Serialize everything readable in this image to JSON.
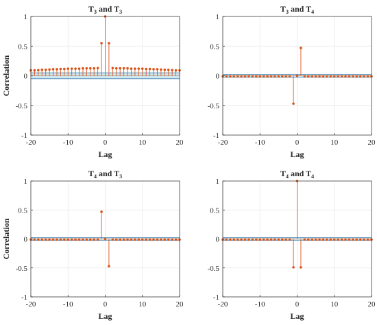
{
  "chart_data": [
    {
      "type": "stem",
      "title": {
        "parts": [
          {
            "t": "T"
          },
          {
            "sub": "3"
          },
          {
            "t": " and T"
          },
          {
            "sub": "3"
          }
        ]
      },
      "xlabel": "Lag",
      "ylabel": "Correlation",
      "xlim": [
        -20,
        20
      ],
      "ylim": [
        -1,
        1
      ],
      "xticks": [
        "-20",
        "-10",
        "0",
        "10",
        "20"
      ],
      "yticks": [
        "1",
        "0.5",
        "0",
        "-0.5",
        "-1"
      ],
      "grid": true,
      "x": [
        -20,
        -19,
        -18,
        -17,
        -16,
        -15,
        -14,
        -13,
        -12,
        -11,
        -10,
        -9,
        -8,
        -7,
        -6,
        -5,
        -4,
        -3,
        -2,
        -1,
        0,
        1,
        2,
        3,
        4,
        5,
        6,
        7,
        8,
        9,
        10,
        11,
        12,
        13,
        14,
        15,
        16,
        17,
        18,
        19,
        20
      ],
      "values": [
        0.09,
        0.09,
        0.095,
        0.1,
        0.1,
        0.105,
        0.11,
        0.11,
        0.115,
        0.115,
        0.12,
        0.12,
        0.12,
        0.12,
        0.125,
        0.125,
        0.125,
        0.125,
        0.13,
        0.55,
        1.0,
        0.55,
        0.13,
        0.125,
        0.125,
        0.125,
        0.125,
        0.12,
        0.12,
        0.12,
        0.12,
        0.115,
        0.115,
        0.11,
        0.11,
        0.105,
        0.1,
        0.1,
        0.095,
        0.09,
        0.09
      ],
      "bounds": [
        0.05,
        -0.05
      ]
    },
    {
      "type": "stem",
      "title": {
        "parts": [
          {
            "t": "T"
          },
          {
            "sub": "3"
          },
          {
            "t": " and T"
          },
          {
            "sub": "4"
          }
        ]
      },
      "xlabel": "Lag",
      "ylabel": "",
      "xlim": [
        -20,
        20
      ],
      "ylim": [
        -1,
        1
      ],
      "xticks": [
        "-20",
        "-10",
        "0",
        "10",
        "20"
      ],
      "yticks": [
        "1",
        "0.5",
        "0",
        "-0.5",
        "-1"
      ],
      "grid": true,
      "x": [
        -20,
        -19,
        -18,
        -17,
        -16,
        -15,
        -14,
        -13,
        -12,
        -11,
        -10,
        -9,
        -8,
        -7,
        -6,
        -5,
        -4,
        -3,
        -2,
        -1,
        0,
        1,
        2,
        3,
        4,
        5,
        6,
        7,
        8,
        9,
        10,
        11,
        12,
        13,
        14,
        15,
        16,
        17,
        18,
        19,
        20
      ],
      "values": [
        -0.01,
        -0.01,
        -0.01,
        -0.01,
        -0.01,
        -0.01,
        -0.01,
        -0.01,
        -0.01,
        -0.01,
        -0.01,
        -0.01,
        -0.01,
        -0.01,
        -0.01,
        -0.01,
        -0.01,
        -0.01,
        -0.01,
        -0.47,
        0.0,
        0.47,
        -0.01,
        -0.01,
        -0.01,
        -0.01,
        -0.01,
        -0.01,
        -0.01,
        -0.01,
        -0.01,
        -0.01,
        -0.01,
        -0.01,
        -0.01,
        -0.01,
        -0.01,
        -0.01,
        -0.01,
        -0.01,
        -0.01
      ],
      "bounds": [
        0.025,
        -0.025
      ]
    },
    {
      "type": "stem",
      "title": {
        "parts": [
          {
            "t": "T"
          },
          {
            "sub": "4"
          },
          {
            "t": " and T"
          },
          {
            "sub": "3"
          }
        ]
      },
      "xlabel": "Lag",
      "ylabel": "Correlation",
      "xlim": [
        -20,
        20
      ],
      "ylim": [
        -1,
        1
      ],
      "xticks": [
        "-20",
        "-10",
        "0",
        "10",
        "20"
      ],
      "yticks": [
        "1",
        "0.5",
        "0",
        "-0.5",
        "-1"
      ],
      "grid": true,
      "x": [
        -20,
        -19,
        -18,
        -17,
        -16,
        -15,
        -14,
        -13,
        -12,
        -11,
        -10,
        -9,
        -8,
        -7,
        -6,
        -5,
        -4,
        -3,
        -2,
        -1,
        0,
        1,
        2,
        3,
        4,
        5,
        6,
        7,
        8,
        9,
        10,
        11,
        12,
        13,
        14,
        15,
        16,
        17,
        18,
        19,
        20
      ],
      "values": [
        -0.01,
        -0.01,
        -0.01,
        -0.01,
        -0.01,
        -0.01,
        -0.01,
        -0.01,
        -0.01,
        -0.01,
        -0.01,
        -0.01,
        -0.01,
        -0.01,
        -0.01,
        -0.01,
        -0.01,
        -0.01,
        -0.01,
        0.47,
        0.0,
        -0.47,
        -0.01,
        -0.01,
        -0.01,
        -0.01,
        -0.01,
        -0.01,
        -0.01,
        -0.01,
        -0.01,
        -0.01,
        -0.01,
        -0.01,
        -0.01,
        -0.01,
        -0.01,
        -0.01,
        -0.01,
        -0.01,
        -0.01
      ],
      "bounds": [
        0.025,
        -0.025
      ]
    },
    {
      "type": "stem",
      "title": {
        "parts": [
          {
            "t": "T"
          },
          {
            "sub": "4"
          },
          {
            "t": " and T"
          },
          {
            "sub": "4"
          }
        ]
      },
      "xlabel": "Lag",
      "ylabel": "",
      "xlim": [
        -20,
        20
      ],
      "ylim": [
        -1,
        1
      ],
      "xticks": [
        "-20",
        "-10",
        "0",
        "10",
        "20"
      ],
      "yticks": [
        "1",
        "0.5",
        "0",
        "-0.5",
        "-1"
      ],
      "grid": true,
      "x": [
        -20,
        -19,
        -18,
        -17,
        -16,
        -15,
        -14,
        -13,
        -12,
        -11,
        -10,
        -9,
        -8,
        -7,
        -6,
        -5,
        -4,
        -3,
        -2,
        -1,
        0,
        1,
        2,
        3,
        4,
        5,
        6,
        7,
        8,
        9,
        10,
        11,
        12,
        13,
        14,
        15,
        16,
        17,
        18,
        19,
        20
      ],
      "values": [
        -0.01,
        -0.01,
        -0.01,
        -0.01,
        -0.01,
        -0.01,
        -0.01,
        -0.01,
        -0.01,
        -0.01,
        -0.01,
        -0.01,
        -0.01,
        -0.01,
        -0.01,
        -0.01,
        -0.01,
        -0.01,
        -0.01,
        -0.49,
        1.0,
        -0.49,
        -0.01,
        -0.01,
        -0.01,
        -0.01,
        -0.01,
        -0.01,
        -0.01,
        -0.01,
        -0.01,
        -0.01,
        -0.01,
        -0.01,
        -0.01,
        -0.01,
        -0.01,
        -0.01,
        -0.01,
        -0.01,
        -0.01
      ],
      "bounds": [
        0.025,
        -0.025
      ]
    }
  ],
  "colors": {
    "stem": "#d95319",
    "bound_line": "#4682b4",
    "bound_fill": "#add8e6",
    "grid": "#e6e6e6",
    "axis": "#262626"
  }
}
